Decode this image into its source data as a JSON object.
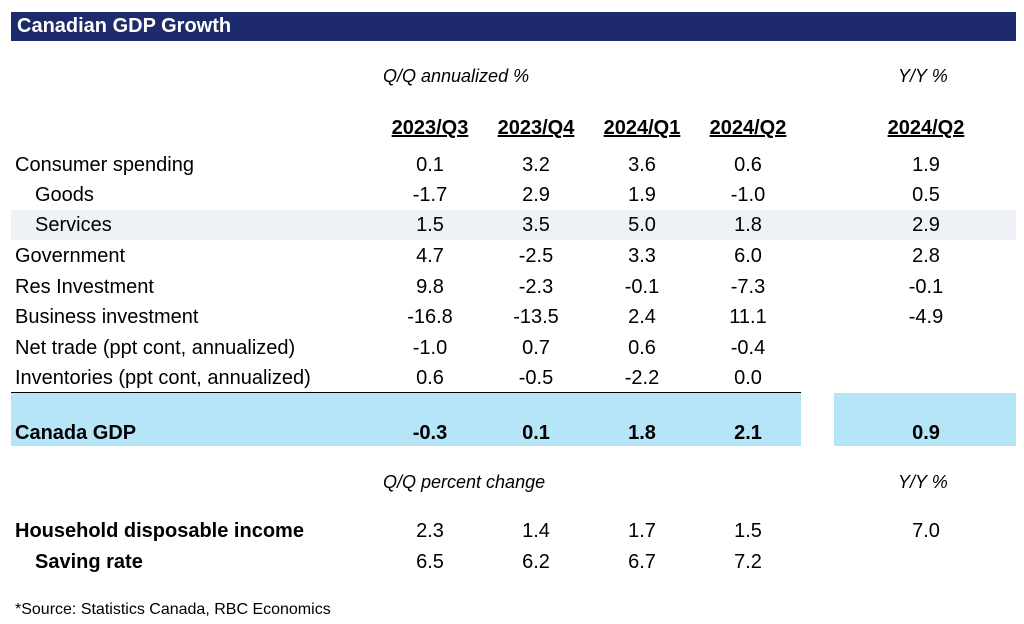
{
  "title": "Canadian GDP Growth",
  "qq_annualized_label": "Q/Q annualized %",
  "yy_label": "Y/Y %",
  "columns": [
    "2023/Q3",
    "2023/Q4",
    "2024/Q1",
    "2024/Q2"
  ],
  "yy_column": "2024/Q2",
  "rows": [
    {
      "label": "Consumer spending",
      "values": [
        "0.1",
        "3.2",
        "3.6",
        "0.6"
      ],
      "yy": "1.9"
    },
    {
      "label": "Goods",
      "values": [
        "-1.7",
        "2.9",
        "1.9",
        "-1.0"
      ],
      "yy": "0.5"
    },
    {
      "label": "Services",
      "values": [
        "1.5",
        "3.5",
        "5.0",
        "1.8"
      ],
      "yy": "2.9"
    },
    {
      "label": "Government",
      "values": [
        "4.7",
        "-2.5",
        "3.3",
        "6.0"
      ],
      "yy": "2.8"
    },
    {
      "label": "Res Investment",
      "values": [
        "9.8",
        "-2.3",
        "-0.1",
        "-7.3"
      ],
      "yy": "-0.1"
    },
    {
      "label": "Business investment",
      "values": [
        "-16.8",
        "-13.5",
        "2.4",
        "11.1"
      ],
      "yy": "-4.9"
    },
    {
      "label": "Net trade (ppt cont, annualized)",
      "values": [
        "-1.0",
        "0.7",
        "0.6",
        "-0.4"
      ],
      "yy": ""
    },
    {
      "label": "Inventories (ppt cont, annualized)",
      "values": [
        "0.6",
        "-0.5",
        "-2.2",
        "0.0"
      ],
      "yy": ""
    }
  ],
  "gdp": {
    "label": "Canada GDP",
    "values": [
      "-0.3",
      "0.1",
      "1.8",
      "2.1"
    ],
    "yy": "0.9"
  },
  "qq_change_label": "Q/Q percent change",
  "yy_label_2": "Y/Y %",
  "income_rows": [
    {
      "label": "Household disposable income",
      "values": [
        "2.3",
        "1.4",
        "1.7",
        "1.5"
      ],
      "yy": "7.0"
    },
    {
      "label": "Saving rate",
      "values": [
        "6.5",
        "6.2",
        "6.7",
        "7.2"
      ],
      "yy": ""
    }
  ],
  "source": "*Source:  Statistics Canada, RBC Economics",
  "colors": {
    "title_bar": "#1d2a6b",
    "highlight": "#b6e5f8",
    "band": "#eef1f6"
  }
}
